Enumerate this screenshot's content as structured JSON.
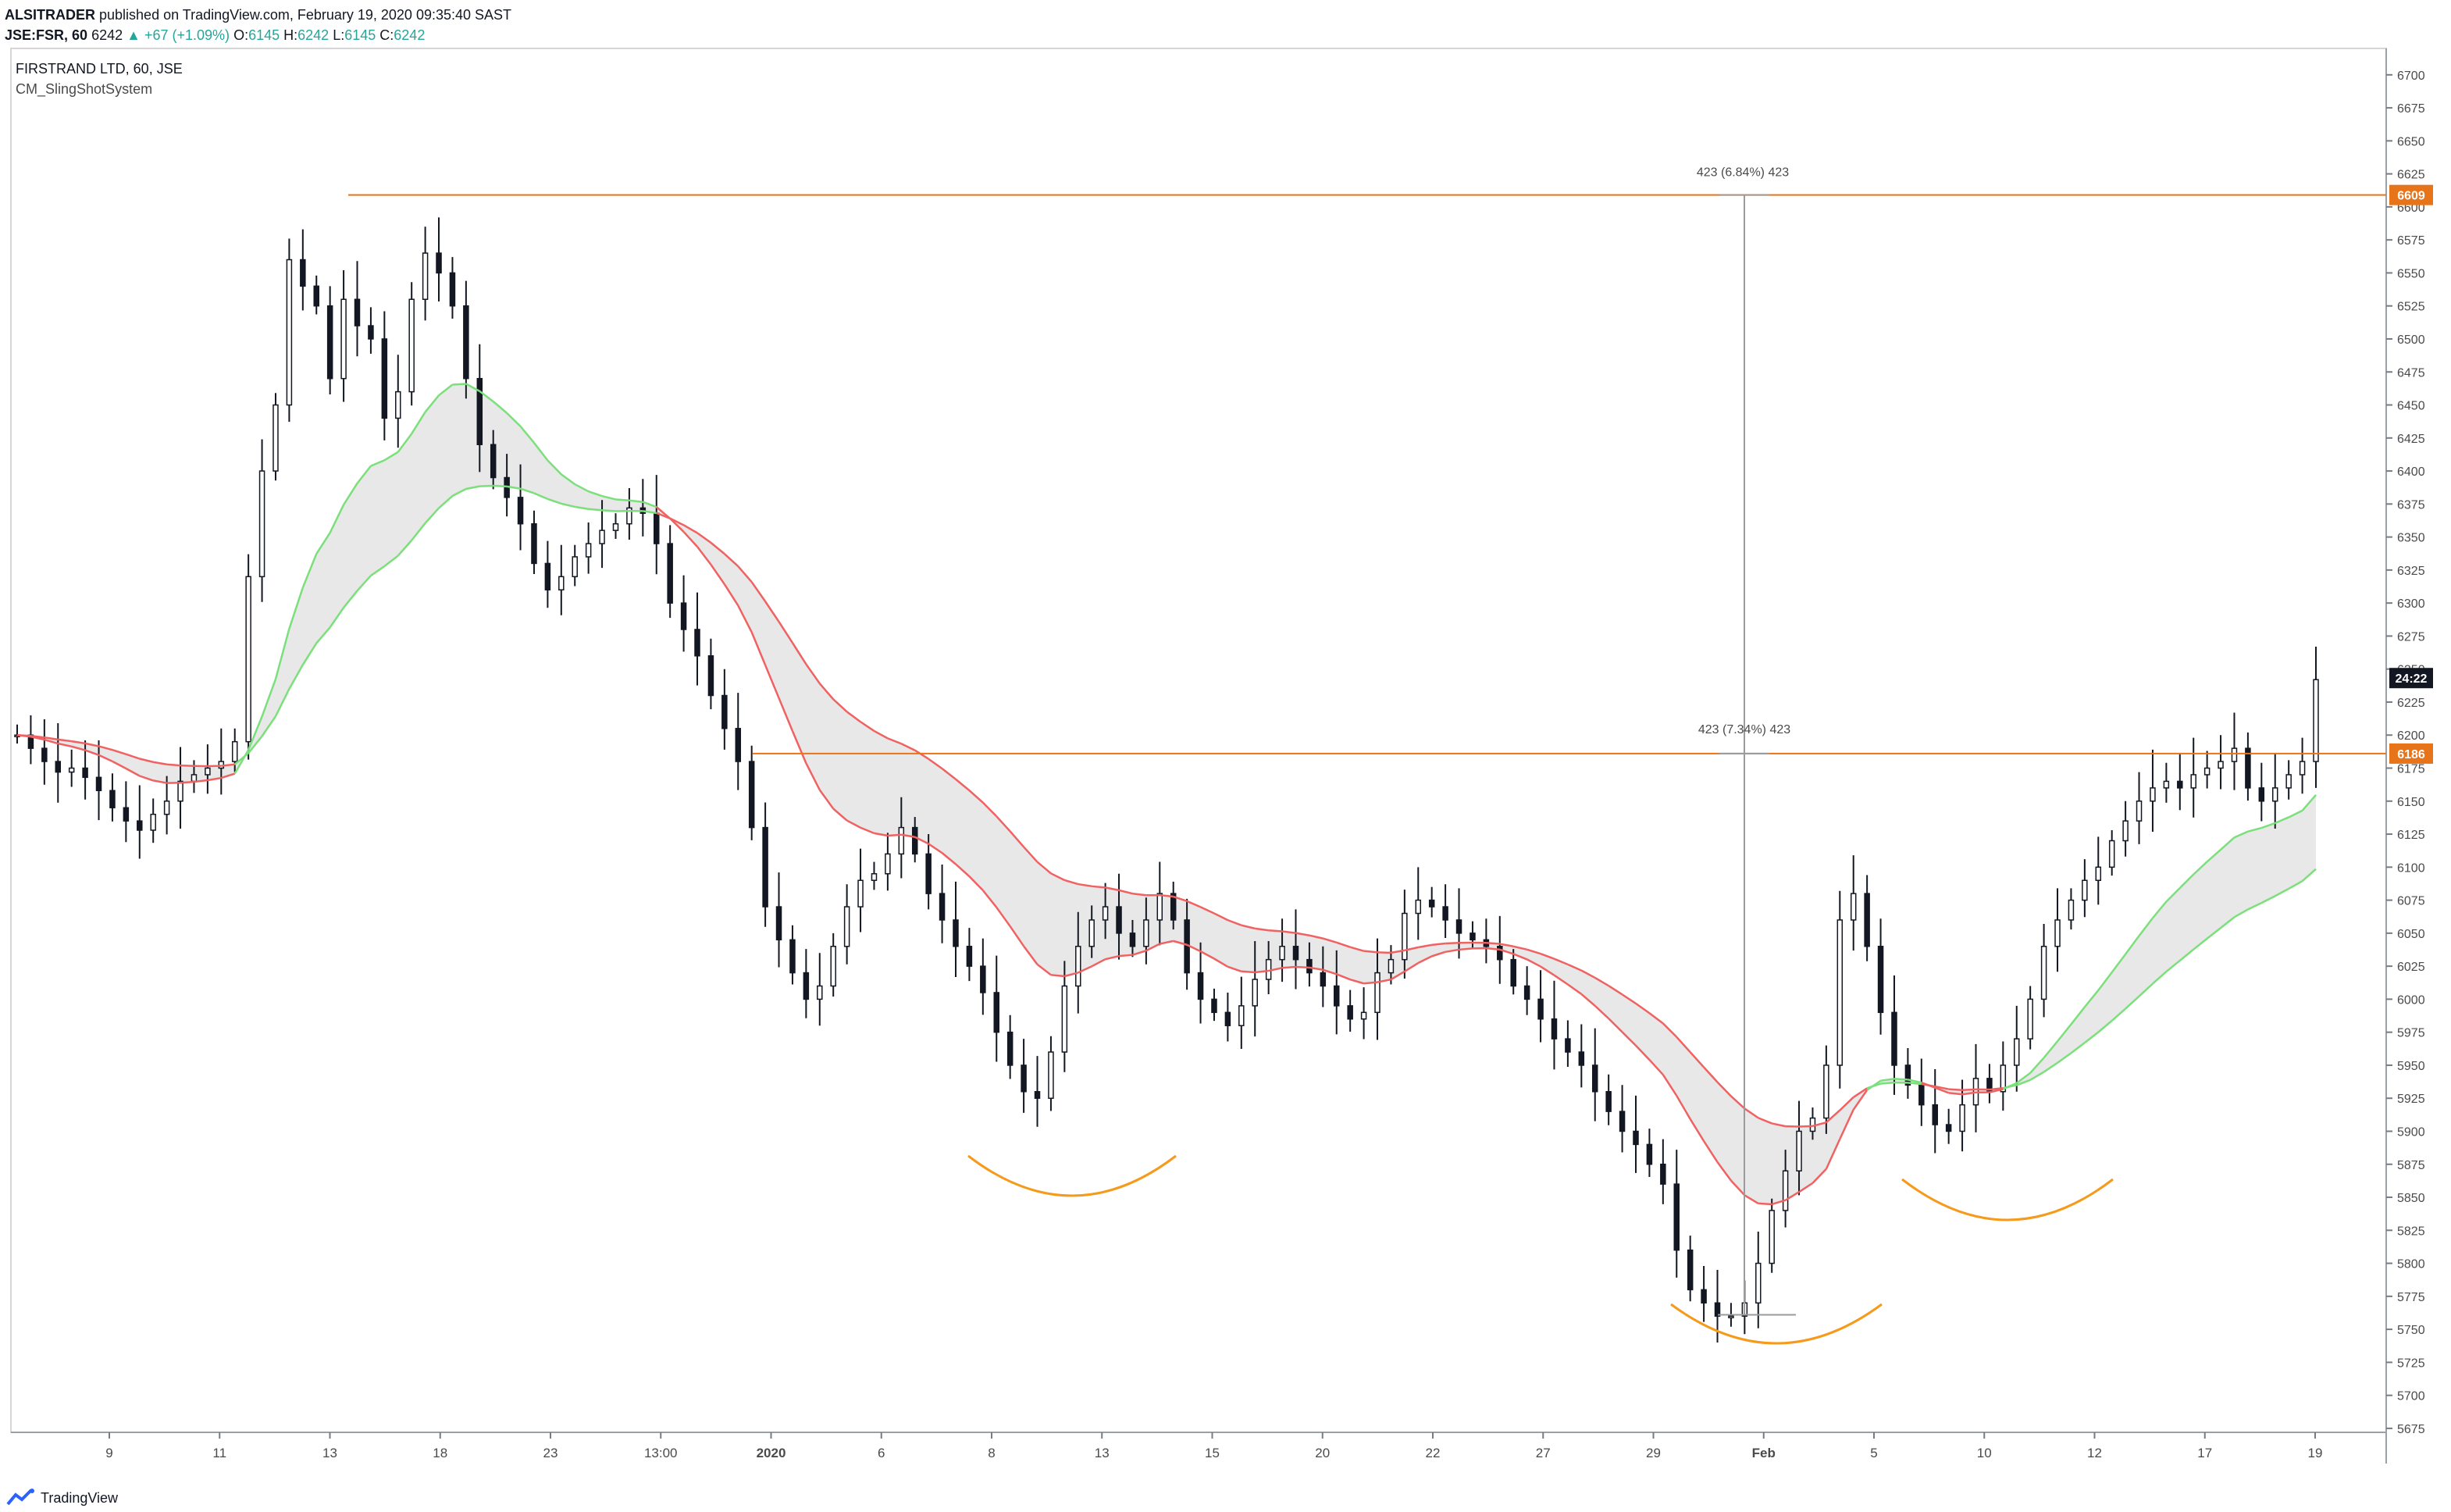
{
  "header": {
    "publisher": "ALSITRADER",
    "published_text": "published on TradingView.com, February 19, 2020 09:35:40 SAST",
    "symbol": "JSE:FSR, 60",
    "last": "6242",
    "change_text": "+67 (+1.09%)",
    "o_label": "O:",
    "o_value": "6145",
    "h_label": "H:",
    "h_value": "6242",
    "l_label": "L:",
    "l_value": "6145",
    "c_label": "C:",
    "c_value": "6242"
  },
  "legend": {
    "title": "FIRSTRAND LTD, 60, JSE",
    "indicator": "CM_SlingShotSystem"
  },
  "annotations": {
    "upper_range": "423 (6.84%) 423",
    "lower_range": "423 (7.34%) 423"
  },
  "price_tags": {
    "upper": "6609",
    "lower": "6186",
    "countdown": "24:22"
  },
  "footer": {
    "brand": "TradingView"
  },
  "colors": {
    "candle": "#131722",
    "bull_band": "#7be07b",
    "bear_band": "#f06262",
    "band_fill": "#d8d8d8",
    "level_line": "#e8741a",
    "arc": "#f59a1a",
    "measure": "#9b9b9b"
  },
  "chart_data": {
    "type": "candlestick",
    "y_ticks": [
      "6700",
      "6675",
      "6650",
      "6625",
      "6600",
      "6575",
      "6550",
      "6525",
      "6500",
      "6475",
      "6450",
      "6425",
      "6400",
      "6375",
      "6350",
      "6325",
      "6300",
      "6275",
      "6250",
      "6225",
      "6200",
      "6175",
      "6150",
      "6125",
      "6100",
      "6075",
      "6050",
      "6025",
      "6000",
      "5975",
      "5950",
      "5925",
      "5900",
      "5875",
      "5850",
      "5825",
      "5800",
      "5775",
      "5750",
      "5725",
      "5700",
      "5675"
    ],
    "ylim": [
      5672,
      6720
    ],
    "x_ticks": [
      "9",
      "11",
      "13",
      "18",
      "23",
      "13:00",
      "2020",
      "6",
      "8",
      "13",
      "15",
      "20",
      "22",
      "27",
      "29",
      "Feb",
      "5",
      "10",
      "12",
      "17",
      "19"
    ],
    "bold_x_ticks": [
      "2020",
      "Feb"
    ],
    "horizontal_levels": [
      6609,
      6186
    ],
    "last_price": 6242,
    "series": [
      {
        "name": "Close",
        "values": [
          6200,
          6190,
          6180,
          6172,
          6175,
          6168,
          6158,
          6145,
          6135,
          6128,
          6140,
          6150,
          6165,
          6170,
          6175,
          6180,
          6195,
          6320,
          6400,
          6450,
          6560,
          6540,
          6525,
          6470,
          6530,
          6510,
          6500,
          6440,
          6460,
          6530,
          6565,
          6550,
          6525,
          6470,
          6420,
          6395,
          6380,
          6360,
          6330,
          6310,
          6320,
          6335,
          6345,
          6355,
          6360,
          6372,
          6368,
          6345,
          6300,
          6280,
          6260,
          6230,
          6205,
          6180,
          6130,
          6070,
          6045,
          6020,
          6000,
          6010,
          6040,
          6070,
          6090,
          6095,
          6110,
          6130,
          6110,
          6080,
          6060,
          6040,
          6025,
          6005,
          5975,
          5950,
          5930,
          5925,
          5960,
          6010,
          6040,
          6060,
          6070,
          6050,
          6040,
          6060,
          6080,
          6060,
          6020,
          6000,
          5990,
          5980,
          5995,
          6015,
          6030,
          6040,
          6030,
          6020,
          6010,
          5995,
          5985,
          5990,
          6020,
          6030,
          6065,
          6075,
          6070,
          6060,
          6050,
          6045,
          6040,
          6030,
          6010,
          6000,
          5985,
          5970,
          5960,
          5950,
          5930,
          5915,
          5900,
          5890,
          5875,
          5860,
          5810,
          5780,
          5770,
          5760,
          5760,
          5770,
          5800,
          5840,
          5870,
          5900,
          5910,
          5950,
          6060,
          6080,
          6040,
          5990,
          5950,
          5935,
          5920,
          5905,
          5900,
          5920,
          5940,
          5930,
          5950,
          5970,
          6000,
          6040,
          6060,
          6075,
          6090,
          6100,
          6120,
          6135,
          6150,
          6160,
          6165,
          6160,
          6170,
          6175,
          6180,
          6190,
          6160,
          6150,
          6160,
          6170,
          6180,
          6242
        ]
      }
    ]
  }
}
